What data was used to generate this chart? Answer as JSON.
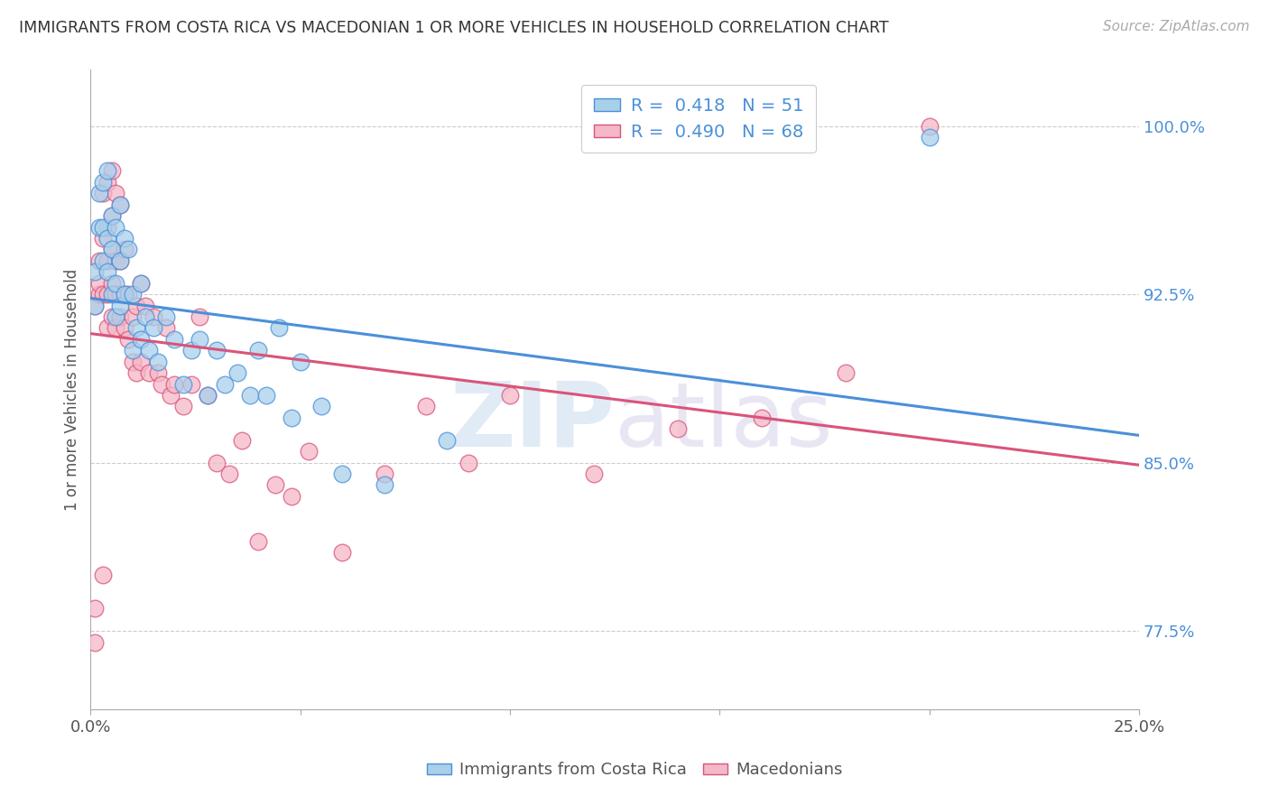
{
  "title": "IMMIGRANTS FROM COSTA RICA VS MACEDONIAN 1 OR MORE VEHICLES IN HOUSEHOLD CORRELATION CHART",
  "source": "Source: ZipAtlas.com",
  "ylabel": "1 or more Vehicles in Household",
  "watermark": "ZIPatlas",
  "legend_blue_R": "0.418",
  "legend_blue_N": "51",
  "legend_pink_R": "0.490",
  "legend_pink_N": "68",
  "legend_label_blue": "Immigrants from Costa Rica",
  "legend_label_pink": "Macedonians",
  "blue_color": "#a8d0eb",
  "pink_color": "#f4b8c8",
  "trendline_blue": "#4a90d9",
  "trendline_pink": "#d9547a",
  "blue_scatter_x": [
    0.001,
    0.001,
    0.002,
    0.002,
    0.003,
    0.003,
    0.003,
    0.004,
    0.004,
    0.004,
    0.005,
    0.005,
    0.005,
    0.006,
    0.006,
    0.006,
    0.007,
    0.007,
    0.007,
    0.008,
    0.008,
    0.009,
    0.01,
    0.01,
    0.011,
    0.012,
    0.012,
    0.013,
    0.014,
    0.015,
    0.016,
    0.018,
    0.02,
    0.022,
    0.024,
    0.026,
    0.028,
    0.03,
    0.032,
    0.035,
    0.038,
    0.04,
    0.042,
    0.045,
    0.048,
    0.05,
    0.055,
    0.06,
    0.07,
    0.085,
    0.2
  ],
  "blue_scatter_y": [
    92.0,
    93.5,
    95.5,
    97.0,
    94.0,
    95.5,
    97.5,
    93.5,
    95.0,
    98.0,
    92.5,
    94.5,
    96.0,
    91.5,
    93.0,
    95.5,
    92.0,
    94.0,
    96.5,
    92.5,
    95.0,
    94.5,
    90.0,
    92.5,
    91.0,
    90.5,
    93.0,
    91.5,
    90.0,
    91.0,
    89.5,
    91.5,
    90.5,
    88.5,
    90.0,
    90.5,
    88.0,
    90.0,
    88.5,
    89.0,
    88.0,
    90.0,
    88.0,
    91.0,
    87.0,
    89.5,
    87.5,
    84.5,
    84.0,
    86.0,
    99.5
  ],
  "pink_scatter_x": [
    0.001,
    0.001,
    0.001,
    0.002,
    0.002,
    0.002,
    0.003,
    0.003,
    0.003,
    0.003,
    0.004,
    0.004,
    0.004,
    0.004,
    0.004,
    0.005,
    0.005,
    0.005,
    0.005,
    0.005,
    0.006,
    0.006,
    0.006,
    0.006,
    0.007,
    0.007,
    0.007,
    0.007,
    0.008,
    0.008,
    0.008,
    0.009,
    0.009,
    0.01,
    0.01,
    0.011,
    0.011,
    0.012,
    0.012,
    0.013,
    0.014,
    0.015,
    0.016,
    0.017,
    0.018,
    0.019,
    0.02,
    0.022,
    0.024,
    0.026,
    0.028,
    0.03,
    0.033,
    0.036,
    0.04,
    0.044,
    0.048,
    0.052,
    0.06,
    0.07,
    0.08,
    0.09,
    0.1,
    0.12,
    0.14,
    0.16,
    0.18,
    0.2
  ],
  "pink_scatter_y": [
    77.0,
    78.5,
    92.0,
    92.5,
    93.0,
    94.0,
    80.0,
    92.5,
    95.0,
    97.0,
    91.0,
    92.5,
    94.0,
    95.5,
    97.5,
    91.5,
    93.0,
    94.5,
    96.0,
    98.0,
    91.0,
    92.5,
    94.0,
    97.0,
    91.5,
    92.5,
    94.0,
    96.5,
    91.0,
    92.5,
    94.5,
    90.5,
    92.5,
    89.5,
    91.5,
    89.0,
    92.0,
    89.5,
    93.0,
    92.0,
    89.0,
    91.5,
    89.0,
    88.5,
    91.0,
    88.0,
    88.5,
    87.5,
    88.5,
    91.5,
    88.0,
    85.0,
    84.5,
    86.0,
    81.5,
    84.0,
    83.5,
    85.5,
    81.0,
    84.5,
    87.5,
    85.0,
    88.0,
    84.5,
    86.5,
    87.0,
    89.0,
    100.0
  ],
  "xlim": [
    0.0,
    0.25
  ],
  "ylim": [
    74.0,
    102.5
  ],
  "yticks": [
    77.5,
    85.0,
    92.5,
    100.0
  ],
  "ytick_labels": [
    "77.5%",
    "85.0%",
    "92.5%",
    "100.0%"
  ],
  "xtick_positions": [
    0.0,
    0.05,
    0.1,
    0.15,
    0.2,
    0.25
  ],
  "xtick_labels_display": [
    "0.0%",
    "",
    "",
    "",
    "",
    "25.0%"
  ]
}
